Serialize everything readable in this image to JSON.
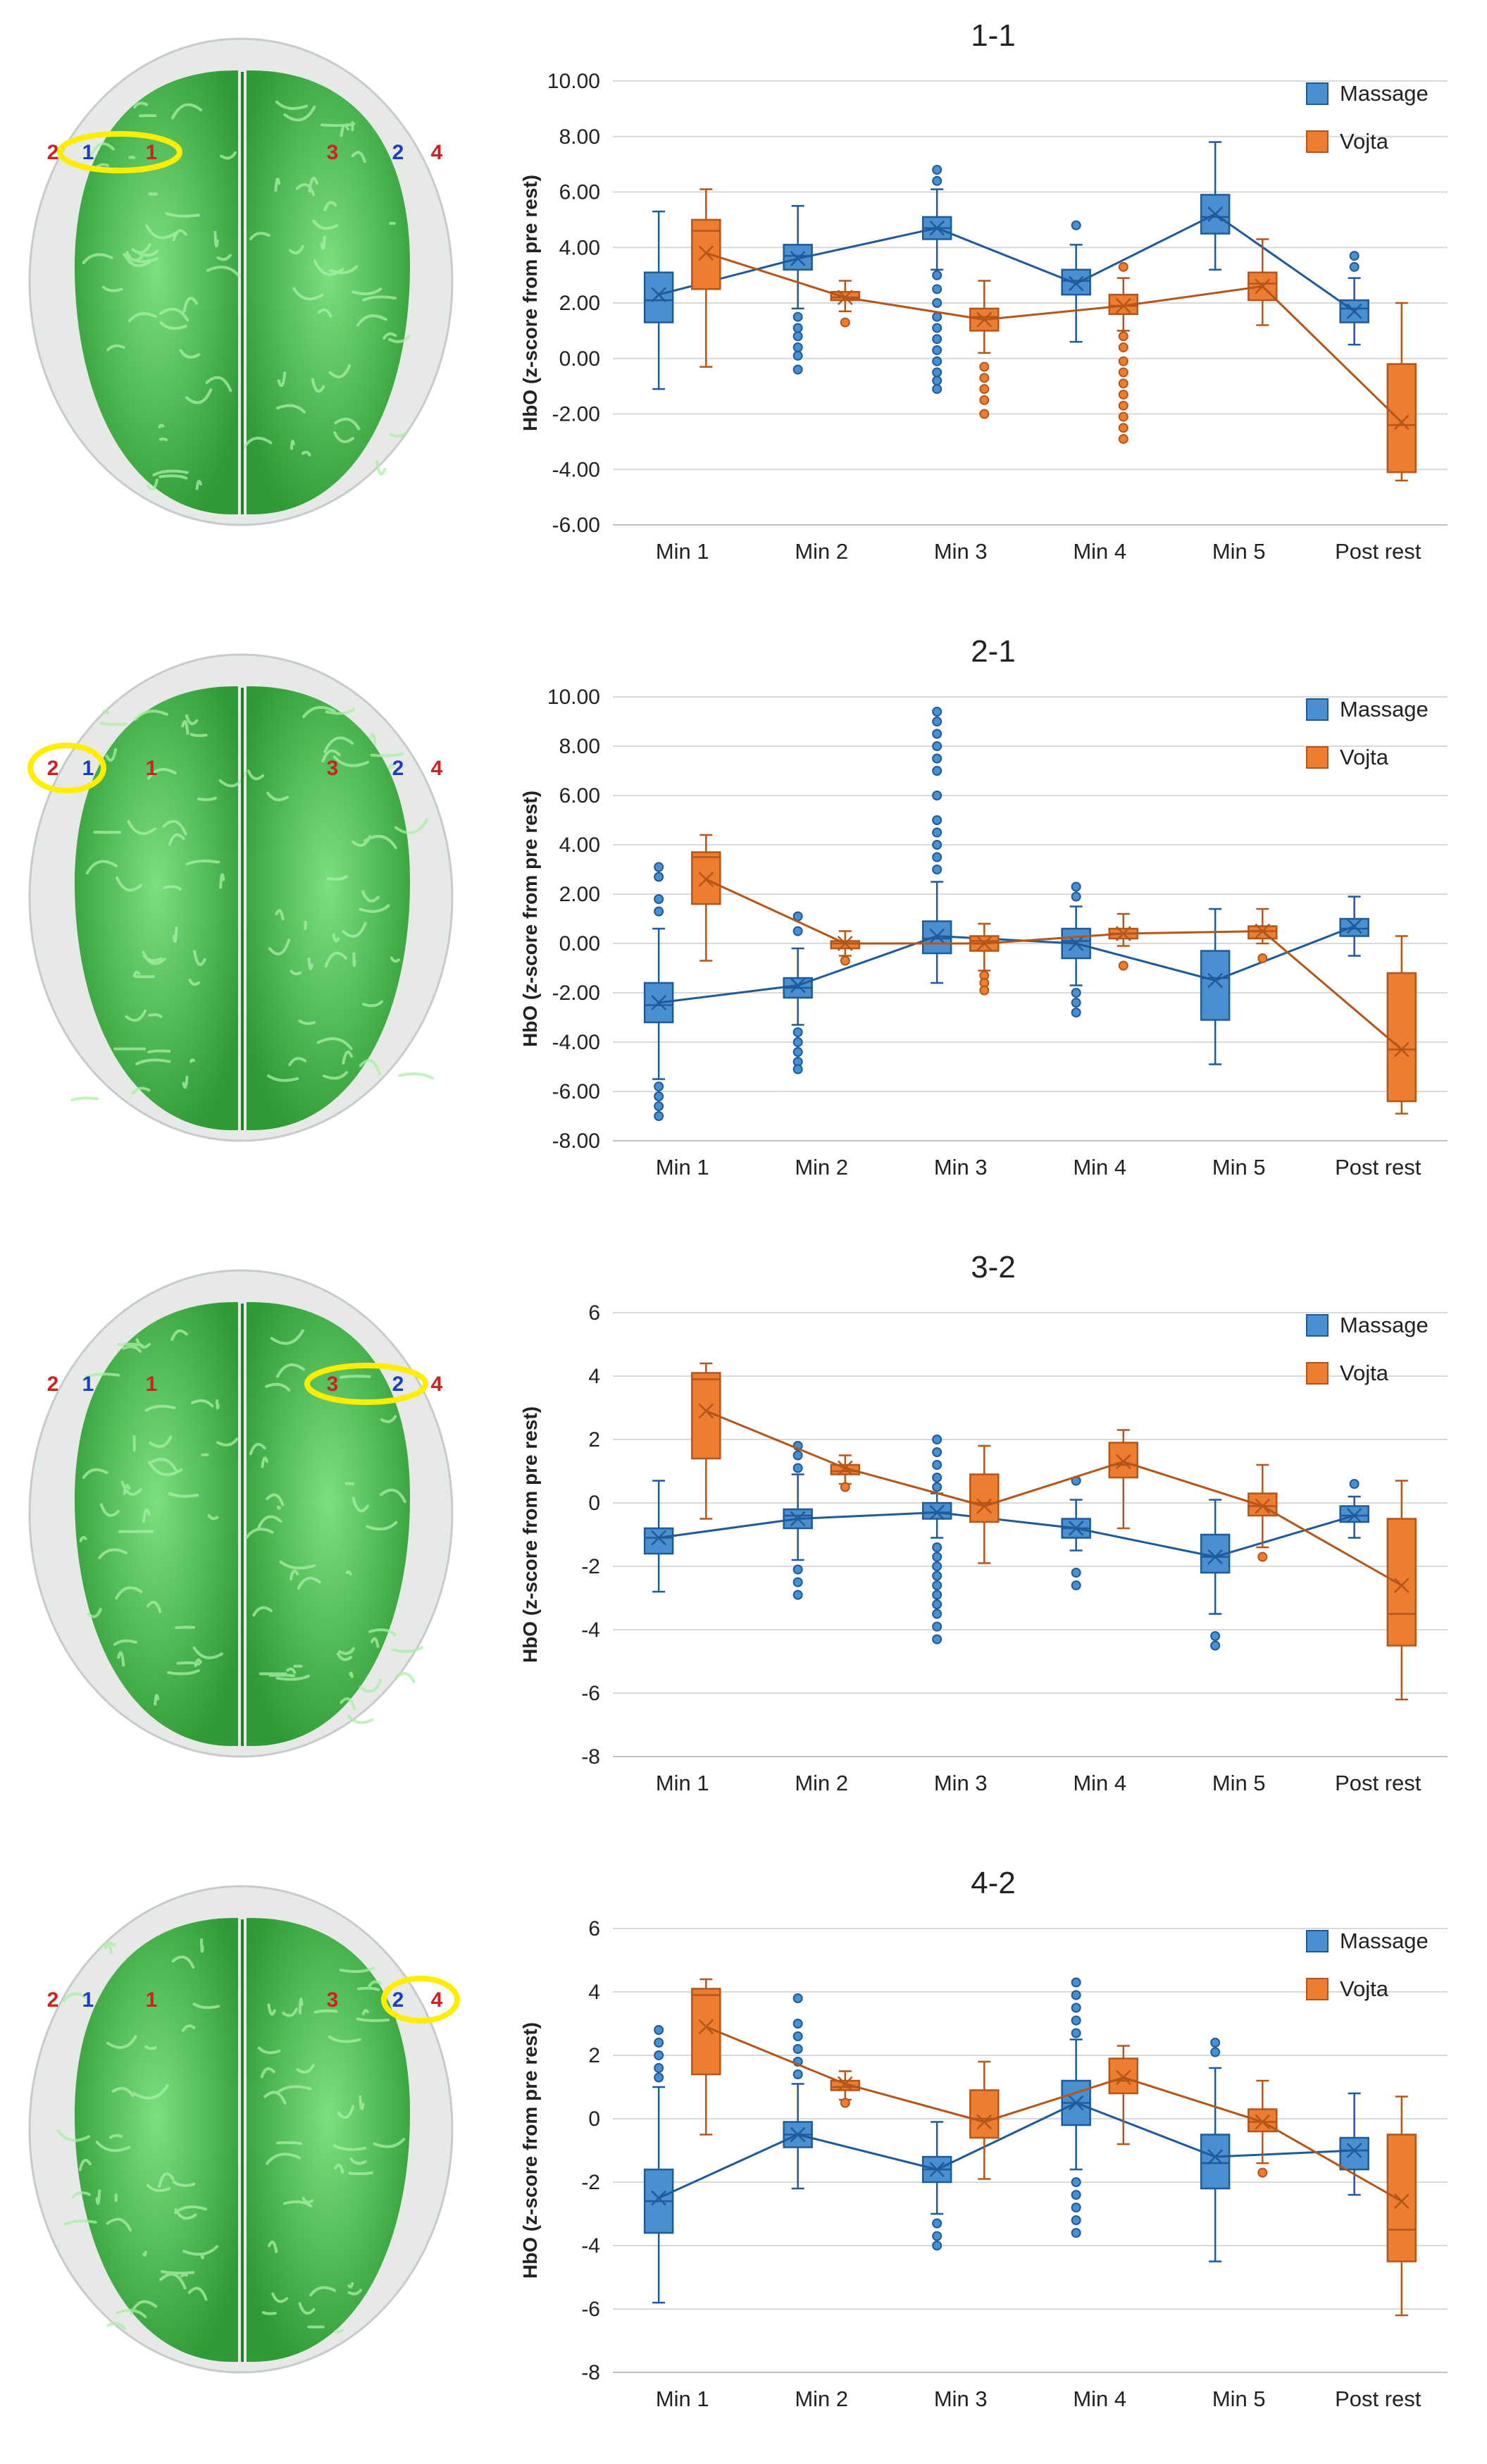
{
  "figure": {
    "legend_labels": [
      "Massage",
      "Vojta"
    ],
    "colors": {
      "massage": "#4a90d0",
      "massage_dark": "#1f5a99",
      "vojta": "#ed7d31",
      "vojta_dark": "#b4561a",
      "brain": "#55c85a",
      "highlight": "#ffee00"
    }
  },
  "brains": [
    {
      "labels": {
        "l2": "2",
        "l1b": "1",
        "l1r": "1",
        "l3": "3",
        "l2b": "2",
        "l4": "4"
      },
      "highlight": "1-1"
    },
    {
      "labels": {
        "l2": "2",
        "l1b": "1",
        "l1r": "1",
        "l3": "3",
        "l2b": "2",
        "l4": "4"
      },
      "highlight": "2-1"
    },
    {
      "labels": {
        "l2": "2",
        "l1b": "1",
        "l1r": "1",
        "l3": "3",
        "l2b": "2",
        "l4": "4"
      },
      "highlight": "3-2"
    },
    {
      "labels": {
        "l2": "2",
        "l1b": "1",
        "l1r": "1",
        "l3": "3",
        "l2b": "2",
        "l4": "4"
      },
      "highlight": "4-2"
    }
  ],
  "chart_data": [
    {
      "type": "box",
      "title": "1-1",
      "ylabel": "HbO (z-score from pre rest)",
      "ylim": [
        -6,
        10
      ],
      "ystep": 2,
      "tick_decimals": 2,
      "categories": [
        "Min 1",
        "Min 2",
        "Min 3",
        "Min 4",
        "Min 5",
        "Post rest"
      ],
      "series": [
        {
          "name": "Massage",
          "boxes": [
            {
              "min": -1.1,
              "q1": 1.3,
              "median": 2.1,
              "q3": 3.1,
              "max": 5.3,
              "mean": 2.3,
              "outliers": []
            },
            {
              "min": 1.8,
              "q1": 3.2,
              "median": 3.7,
              "q3": 4.1,
              "max": 5.5,
              "mean": 3.6,
              "outliers": [
                1.5,
                1.1,
                0.8,
                0.4,
                0.1,
                -0.4
              ]
            },
            {
              "min": 3.2,
              "q1": 4.3,
              "median": 4.7,
              "q3": 5.1,
              "max": 6.1,
              "mean": 4.7,
              "outliers": [
                6.8,
                6.4,
                3.0,
                2.5,
                2.0,
                1.5,
                1.1,
                0.7,
                0.3,
                -0.1,
                -0.5,
                -0.8,
                -1.1
              ]
            },
            {
              "min": 0.6,
              "q1": 2.3,
              "median": 2.8,
              "q3": 3.2,
              "max": 4.1,
              "mean": 2.7,
              "outliers": [
                4.8
              ]
            },
            {
              "min": 3.2,
              "q1": 4.5,
              "median": 5.1,
              "q3": 5.9,
              "max": 7.8,
              "mean": 5.2,
              "outliers": []
            },
            {
              "min": 0.5,
              "q1": 1.3,
              "median": 1.8,
              "q3": 2.1,
              "max": 2.9,
              "mean": 1.7,
              "outliers": [
                3.7,
                3.3
              ]
            }
          ]
        },
        {
          "name": "Vojta",
          "boxes": [
            {
              "min": -0.3,
              "q1": 2.5,
              "median": 4.6,
              "q3": 5.0,
              "max": 6.1,
              "mean": 3.8,
              "outliers": []
            },
            {
              "min": 1.7,
              "q1": 2.1,
              "median": 2.2,
              "q3": 2.4,
              "max": 2.8,
              "mean": 2.2,
              "outliers": [
                1.3
              ]
            },
            {
              "min": 0.2,
              "q1": 1.0,
              "median": 1.5,
              "q3": 1.8,
              "max": 2.8,
              "mean": 1.4,
              "outliers": [
                -0.3,
                -0.7,
                -1.1,
                -1.5,
                -2.0
              ]
            },
            {
              "min": 1.0,
              "q1": 1.6,
              "median": 1.9,
              "q3": 2.3,
              "max": 2.9,
              "mean": 1.9,
              "outliers": [
                3.3,
                0.8,
                0.4,
                -0.1,
                -0.5,
                -0.9,
                -1.3,
                -1.7,
                -2.1,
                -2.5,
                -2.9
              ]
            },
            {
              "min": 1.2,
              "q1": 2.1,
              "median": 2.7,
              "q3": 3.1,
              "max": 4.3,
              "mean": 2.6,
              "outliers": []
            },
            {
              "min": -4.4,
              "q1": -4.1,
              "median": -2.4,
              "q3": -0.2,
              "max": 2.0,
              "mean": -2.3,
              "outliers": []
            }
          ]
        }
      ]
    },
    {
      "type": "box",
      "title": "2-1",
      "ylabel": "HbO (z-score from pre rest)",
      "ylim": [
        -8,
        10
      ],
      "ystep": 2,
      "tick_decimals": 2,
      "categories": [
        "Min 1",
        "Min 2",
        "Min 3",
        "Min 4",
        "Min 5",
        "Post rest"
      ],
      "series": [
        {
          "name": "Massage",
          "boxes": [
            {
              "min": -5.5,
              "q1": -3.2,
              "median": -2.5,
              "q3": -1.6,
              "max": 0.6,
              "mean": -2.4,
              "outliers": [
                3.1,
                2.7,
                1.8,
                1.3,
                -5.8,
                -6.2,
                -6.6,
                -7.0
              ]
            },
            {
              "min": -3.3,
              "q1": -2.2,
              "median": -1.8,
              "q3": -1.4,
              "max": -0.2,
              "mean": -1.7,
              "outliers": [
                1.1,
                0.5,
                -3.6,
                -4.0,
                -4.4,
                -4.8,
                -5.1
              ]
            },
            {
              "min": -1.6,
              "q1": -0.4,
              "median": 0.2,
              "q3": 0.9,
              "max": 2.5,
              "mean": 0.3,
              "outliers": [
                9.4,
                9.0,
                8.5,
                8.0,
                7.5,
                7.0,
                6.0,
                5.0,
                4.5,
                4.0,
                3.5,
                3.0
              ]
            },
            {
              "min": -1.7,
              "q1": -0.6,
              "median": 0.1,
              "q3": 0.6,
              "max": 1.5,
              "mean": 0.0,
              "outliers": [
                2.3,
                1.9,
                -2.0,
                -2.4,
                -2.8
              ]
            },
            {
              "min": -4.9,
              "q1": -3.1,
              "median": -1.4,
              "q3": -0.3,
              "max": 1.4,
              "mean": -1.5,
              "outliers": []
            },
            {
              "min": -0.5,
              "q1": 0.3,
              "median": 0.6,
              "q3": 1.0,
              "max": 1.9,
              "mean": 0.7,
              "outliers": []
            }
          ]
        },
        {
          "name": "Vojta",
          "boxes": [
            {
              "min": -0.7,
              "q1": 1.6,
              "median": 3.5,
              "q3": 3.7,
              "max": 4.4,
              "mean": 2.6,
              "outliers": []
            },
            {
              "min": -0.5,
              "q1": -0.2,
              "median": 0.0,
              "q3": 0.1,
              "max": 0.5,
              "mean": 0.0,
              "outliers": [
                -0.7
              ]
            },
            {
              "min": -1.1,
              "q1": -0.3,
              "median": 0.1,
              "q3": 0.3,
              "max": 0.8,
              "mean": 0.0,
              "outliers": [
                -1.3,
                -1.6,
                -1.9
              ]
            },
            {
              "min": -0.1,
              "q1": 0.2,
              "median": 0.4,
              "q3": 0.6,
              "max": 1.2,
              "mean": 0.4,
              "outliers": [
                -0.9
              ]
            },
            {
              "min": 0.0,
              "q1": 0.2,
              "median": 0.5,
              "q3": 0.7,
              "max": 1.4,
              "mean": 0.5,
              "outliers": [
                -0.6
              ]
            },
            {
              "min": -6.9,
              "q1": -6.4,
              "median": -4.3,
              "q3": -1.2,
              "max": 0.3,
              "mean": -4.3,
              "outliers": []
            }
          ]
        }
      ]
    },
    {
      "type": "box",
      "title": "3-2",
      "ylabel": "HbO (z-score from pre rest)",
      "ylim": [
        -8,
        6
      ],
      "ystep": 2,
      "tick_decimals": 0,
      "categories": [
        "Min 1",
        "Min 2",
        "Min 3",
        "Min 4",
        "Min 5",
        "Post rest"
      ],
      "series": [
        {
          "name": "Massage",
          "boxes": [
            {
              "min": -2.8,
              "q1": -1.6,
              "median": -1.1,
              "q3": -0.8,
              "max": 0.7,
              "mean": -1.1,
              "outliers": []
            },
            {
              "min": -1.8,
              "q1": -0.8,
              "median": -0.4,
              "q3": -0.2,
              "max": 0.9,
              "mean": -0.5,
              "outliers": [
                1.8,
                1.5,
                1.1,
                -2.1,
                -2.5,
                -2.9
              ]
            },
            {
              "min": -1.1,
              "q1": -0.5,
              "median": -0.3,
              "q3": 0.0,
              "max": 0.3,
              "mean": -0.3,
              "outliers": [
                2.0,
                1.6,
                1.2,
                0.8,
                0.5,
                -1.4,
                -1.7,
                -2.0,
                -2.3,
                -2.6,
                -2.9,
                -3.2,
                -3.5,
                -3.9,
                -4.3
              ]
            },
            {
              "min": -1.5,
              "q1": -1.1,
              "median": -0.8,
              "q3": -0.5,
              "max": 0.1,
              "mean": -0.8,
              "outliers": [
                0.7,
                -2.2,
                -2.6
              ]
            },
            {
              "min": -3.5,
              "q1": -2.2,
              "median": -1.7,
              "q3": -1.0,
              "max": 0.1,
              "mean": -1.7,
              "outliers": [
                -4.2,
                -4.5
              ]
            },
            {
              "min": -1.1,
              "q1": -0.6,
              "median": -0.4,
              "q3": -0.1,
              "max": 0.2,
              "mean": -0.4,
              "outliers": [
                0.6
              ]
            }
          ]
        },
        {
          "name": "Vojta",
          "boxes": [
            {
              "min": -0.5,
              "q1": 1.4,
              "median": 3.9,
              "q3": 4.1,
              "max": 4.4,
              "mean": 2.9,
              "outliers": []
            },
            {
              "min": 0.6,
              "q1": 0.9,
              "median": 1.0,
              "q3": 1.2,
              "max": 1.5,
              "mean": 1.1,
              "outliers": [
                0.5
              ]
            },
            {
              "min": -1.9,
              "q1": -0.6,
              "median": 0.0,
              "q3": 0.9,
              "max": 1.8,
              "mean": -0.1,
              "outliers": []
            },
            {
              "min": -0.8,
              "q1": 0.8,
              "median": 1.2,
              "q3": 1.9,
              "max": 2.3,
              "mean": 1.3,
              "outliers": []
            },
            {
              "min": -1.4,
              "q1": -0.4,
              "median": -0.1,
              "q3": 0.3,
              "max": 1.2,
              "mean": -0.1,
              "outliers": [
                -1.7
              ]
            },
            {
              "min": -6.2,
              "q1": -4.5,
              "median": -3.5,
              "q3": -0.5,
              "max": 0.7,
              "mean": -2.6,
              "outliers": []
            }
          ]
        }
      ]
    },
    {
      "type": "box",
      "title": "4-2",
      "ylabel": "HbO (z-score from pre rest)",
      "ylim": [
        -8,
        6
      ],
      "ystep": 2,
      "tick_decimals": 0,
      "categories": [
        "Min 1",
        "Min 2",
        "Min 3",
        "Min 4",
        "Min 5",
        "Post rest"
      ],
      "series": [
        {
          "name": "Massage",
          "boxes": [
            {
              "min": -5.8,
              "q1": -3.6,
              "median": -2.6,
              "q3": -1.6,
              "max": 1.0,
              "mean": -2.5,
              "outliers": [
                2.8,
                2.4,
                2.0,
                1.6,
                1.3
              ]
            },
            {
              "min": -2.2,
              "q1": -0.9,
              "median": -0.5,
              "q3": -0.1,
              "max": 1.1,
              "mean": -0.5,
              "outliers": [
                3.8,
                3.0,
                2.6,
                2.2,
                1.8,
                1.4
              ]
            },
            {
              "min": -3.0,
              "q1": -2.0,
              "median": -1.6,
              "q3": -1.2,
              "max": -0.1,
              "mean": -1.6,
              "outliers": [
                -3.3,
                -3.7,
                -4.0
              ]
            },
            {
              "min": -1.6,
              "q1": -0.2,
              "median": 0.5,
              "q3": 1.2,
              "max": 2.5,
              "mean": 0.5,
              "outliers": [
                4.3,
                3.9,
                3.5,
                3.1,
                2.7,
                -2.0,
                -2.4,
                -2.8,
                -3.2,
                -3.6
              ]
            },
            {
              "min": -4.5,
              "q1": -2.2,
              "median": -1.4,
              "q3": -0.5,
              "max": 1.6,
              "mean": -1.2,
              "outliers": [
                2.4,
                2.1
              ]
            },
            {
              "min": -2.4,
              "q1": -1.6,
              "median": -1.0,
              "q3": -0.6,
              "max": 0.8,
              "mean": -1.0,
              "outliers": []
            }
          ]
        },
        {
          "name": "Vojta",
          "boxes": [
            {
              "min": -0.5,
              "q1": 1.4,
              "median": 3.9,
              "q3": 4.1,
              "max": 4.4,
              "mean": 2.9,
              "outliers": []
            },
            {
              "min": 0.6,
              "q1": 0.9,
              "median": 1.0,
              "q3": 1.2,
              "max": 1.5,
              "mean": 1.1,
              "outliers": [
                0.5
              ]
            },
            {
              "min": -1.9,
              "q1": -0.6,
              "median": 0.0,
              "q3": 0.9,
              "max": 1.8,
              "mean": -0.1,
              "outliers": []
            },
            {
              "min": -0.8,
              "q1": 0.8,
              "median": 1.2,
              "q3": 1.9,
              "max": 2.3,
              "mean": 1.3,
              "outliers": []
            },
            {
              "min": -1.4,
              "q1": -0.4,
              "median": -0.1,
              "q3": 0.3,
              "max": 1.2,
              "mean": -0.1,
              "outliers": [
                -1.7
              ]
            },
            {
              "min": -6.2,
              "q1": -4.5,
              "median": -3.5,
              "q3": -0.5,
              "max": 0.7,
              "mean": -2.6,
              "outliers": []
            }
          ]
        }
      ]
    }
  ]
}
